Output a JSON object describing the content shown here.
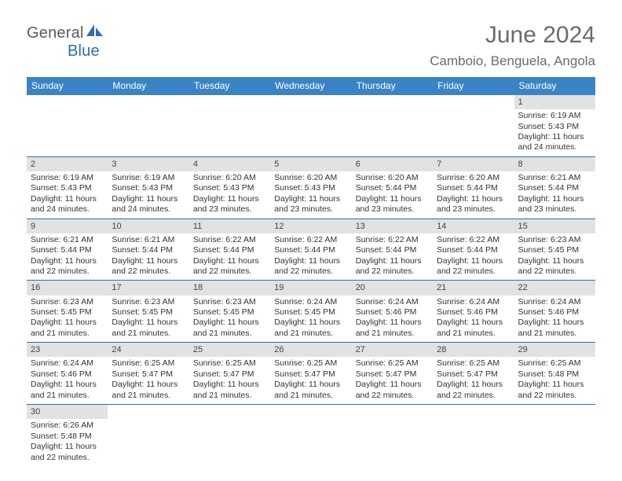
{
  "logo": {
    "general": "General",
    "blue": "Blue"
  },
  "title": "June 2024",
  "location": "Camboio, Benguela, Angola",
  "colors": {
    "header_bg": "#3a84c5",
    "header_text": "#ffffff",
    "daybar_bg": "#e2e2e2",
    "row_border": "#2f6fb0",
    "title_color": "#6b6b6b",
    "logo_gray": "#5b5b5b",
    "logo_blue": "#2f6fb0"
  },
  "day_headers": [
    "Sunday",
    "Monday",
    "Tuesday",
    "Wednesday",
    "Thursday",
    "Friday",
    "Saturday"
  ],
  "weeks": [
    [
      null,
      null,
      null,
      null,
      null,
      null,
      {
        "n": "1",
        "sr": "Sunrise: 6:19 AM",
        "ss": "Sunset: 5:43 PM",
        "dl1": "Daylight: 11 hours",
        "dl2": "and 24 minutes."
      }
    ],
    [
      {
        "n": "2",
        "sr": "Sunrise: 6:19 AM",
        "ss": "Sunset: 5:43 PM",
        "dl1": "Daylight: 11 hours",
        "dl2": "and 24 minutes."
      },
      {
        "n": "3",
        "sr": "Sunrise: 6:19 AM",
        "ss": "Sunset: 5:43 PM",
        "dl1": "Daylight: 11 hours",
        "dl2": "and 24 minutes."
      },
      {
        "n": "4",
        "sr": "Sunrise: 6:20 AM",
        "ss": "Sunset: 5:43 PM",
        "dl1": "Daylight: 11 hours",
        "dl2": "and 23 minutes."
      },
      {
        "n": "5",
        "sr": "Sunrise: 6:20 AM",
        "ss": "Sunset: 5:43 PM",
        "dl1": "Daylight: 11 hours",
        "dl2": "and 23 minutes."
      },
      {
        "n": "6",
        "sr": "Sunrise: 6:20 AM",
        "ss": "Sunset: 5:44 PM",
        "dl1": "Daylight: 11 hours",
        "dl2": "and 23 minutes."
      },
      {
        "n": "7",
        "sr": "Sunrise: 6:20 AM",
        "ss": "Sunset: 5:44 PM",
        "dl1": "Daylight: 11 hours",
        "dl2": "and 23 minutes."
      },
      {
        "n": "8",
        "sr": "Sunrise: 6:21 AM",
        "ss": "Sunset: 5:44 PM",
        "dl1": "Daylight: 11 hours",
        "dl2": "and 23 minutes."
      }
    ],
    [
      {
        "n": "9",
        "sr": "Sunrise: 6:21 AM",
        "ss": "Sunset: 5:44 PM",
        "dl1": "Daylight: 11 hours",
        "dl2": "and 22 minutes."
      },
      {
        "n": "10",
        "sr": "Sunrise: 6:21 AM",
        "ss": "Sunset: 5:44 PM",
        "dl1": "Daylight: 11 hours",
        "dl2": "and 22 minutes."
      },
      {
        "n": "11",
        "sr": "Sunrise: 6:22 AM",
        "ss": "Sunset: 5:44 PM",
        "dl1": "Daylight: 11 hours",
        "dl2": "and 22 minutes."
      },
      {
        "n": "12",
        "sr": "Sunrise: 6:22 AM",
        "ss": "Sunset: 5:44 PM",
        "dl1": "Daylight: 11 hours",
        "dl2": "and 22 minutes."
      },
      {
        "n": "13",
        "sr": "Sunrise: 6:22 AM",
        "ss": "Sunset: 5:44 PM",
        "dl1": "Daylight: 11 hours",
        "dl2": "and 22 minutes."
      },
      {
        "n": "14",
        "sr": "Sunrise: 6:22 AM",
        "ss": "Sunset: 5:44 PM",
        "dl1": "Daylight: 11 hours",
        "dl2": "and 22 minutes."
      },
      {
        "n": "15",
        "sr": "Sunrise: 6:23 AM",
        "ss": "Sunset: 5:45 PM",
        "dl1": "Daylight: 11 hours",
        "dl2": "and 22 minutes."
      }
    ],
    [
      {
        "n": "16",
        "sr": "Sunrise: 6:23 AM",
        "ss": "Sunset: 5:45 PM",
        "dl1": "Daylight: 11 hours",
        "dl2": "and 21 minutes."
      },
      {
        "n": "17",
        "sr": "Sunrise: 6:23 AM",
        "ss": "Sunset: 5:45 PM",
        "dl1": "Daylight: 11 hours",
        "dl2": "and 21 minutes."
      },
      {
        "n": "18",
        "sr": "Sunrise: 6:23 AM",
        "ss": "Sunset: 5:45 PM",
        "dl1": "Daylight: 11 hours",
        "dl2": "and 21 minutes."
      },
      {
        "n": "19",
        "sr": "Sunrise: 6:24 AM",
        "ss": "Sunset: 5:45 PM",
        "dl1": "Daylight: 11 hours",
        "dl2": "and 21 minutes."
      },
      {
        "n": "20",
        "sr": "Sunrise: 6:24 AM",
        "ss": "Sunset: 5:46 PM",
        "dl1": "Daylight: 11 hours",
        "dl2": "and 21 minutes."
      },
      {
        "n": "21",
        "sr": "Sunrise: 6:24 AM",
        "ss": "Sunset: 5:46 PM",
        "dl1": "Daylight: 11 hours",
        "dl2": "and 21 minutes."
      },
      {
        "n": "22",
        "sr": "Sunrise: 6:24 AM",
        "ss": "Sunset: 5:46 PM",
        "dl1": "Daylight: 11 hours",
        "dl2": "and 21 minutes."
      }
    ],
    [
      {
        "n": "23",
        "sr": "Sunrise: 6:24 AM",
        "ss": "Sunset: 5:46 PM",
        "dl1": "Daylight: 11 hours",
        "dl2": "and 21 minutes."
      },
      {
        "n": "24",
        "sr": "Sunrise: 6:25 AM",
        "ss": "Sunset: 5:47 PM",
        "dl1": "Daylight: 11 hours",
        "dl2": "and 21 minutes."
      },
      {
        "n": "25",
        "sr": "Sunrise: 6:25 AM",
        "ss": "Sunset: 5:47 PM",
        "dl1": "Daylight: 11 hours",
        "dl2": "and 21 minutes."
      },
      {
        "n": "26",
        "sr": "Sunrise: 6:25 AM",
        "ss": "Sunset: 5:47 PM",
        "dl1": "Daylight: 11 hours",
        "dl2": "and 21 minutes."
      },
      {
        "n": "27",
        "sr": "Sunrise: 6:25 AM",
        "ss": "Sunset: 5:47 PM",
        "dl1": "Daylight: 11 hours",
        "dl2": "and 22 minutes."
      },
      {
        "n": "28",
        "sr": "Sunrise: 6:25 AM",
        "ss": "Sunset: 5:47 PM",
        "dl1": "Daylight: 11 hours",
        "dl2": "and 22 minutes."
      },
      {
        "n": "29",
        "sr": "Sunrise: 6:25 AM",
        "ss": "Sunset: 5:48 PM",
        "dl1": "Daylight: 11 hours",
        "dl2": "and 22 minutes."
      }
    ],
    [
      {
        "n": "30",
        "sr": "Sunrise: 6:26 AM",
        "ss": "Sunset: 5:48 PM",
        "dl1": "Daylight: 11 hours",
        "dl2": "and 22 minutes."
      },
      null,
      null,
      null,
      null,
      null,
      null
    ]
  ]
}
